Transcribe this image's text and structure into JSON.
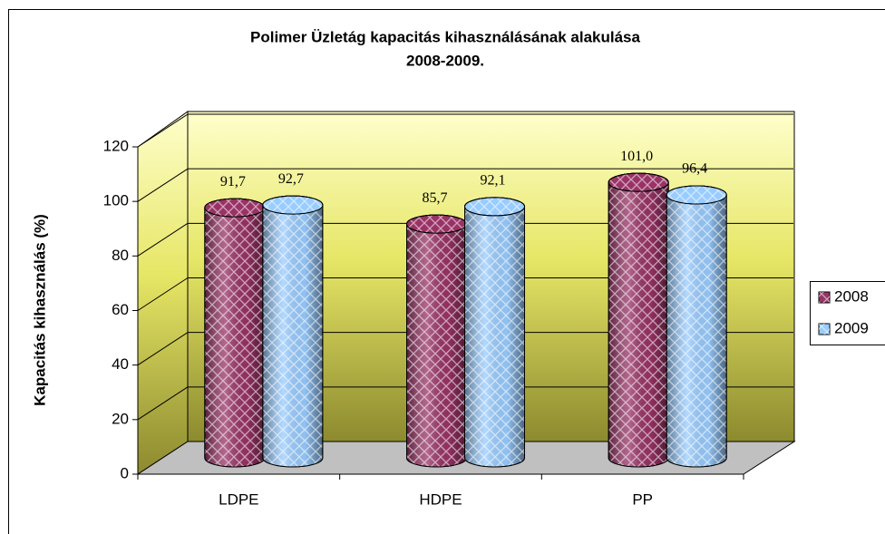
{
  "chart_data": {
    "type": "bar3d-cylinder",
    "title": "Polimer Üzletág kapacitás kihasználásának alakulása",
    "subtitle": "2008-2009.",
    "y_label": "Kapacitás kihasználás (%)",
    "categories": [
      "LDPE",
      "HDPE",
      "PP"
    ],
    "series": [
      {
        "name": "2008",
        "color": "#993366",
        "values": [
          91.7,
          85.7,
          101.0
        ],
        "value_labels": [
          "91,7",
          "85,7",
          "101,0"
        ]
      },
      {
        "name": "2009",
        "color": "#99ccff",
        "values": [
          92.7,
          92.1,
          96.4
        ],
        "value_labels": [
          "92,7",
          "92,1",
          "96,4"
        ]
      }
    ],
    "ylim": [
      0,
      120
    ],
    "yticks": [
      0,
      20,
      40,
      60,
      80,
      100,
      120
    ],
    "grid": true,
    "legend": "right"
  }
}
